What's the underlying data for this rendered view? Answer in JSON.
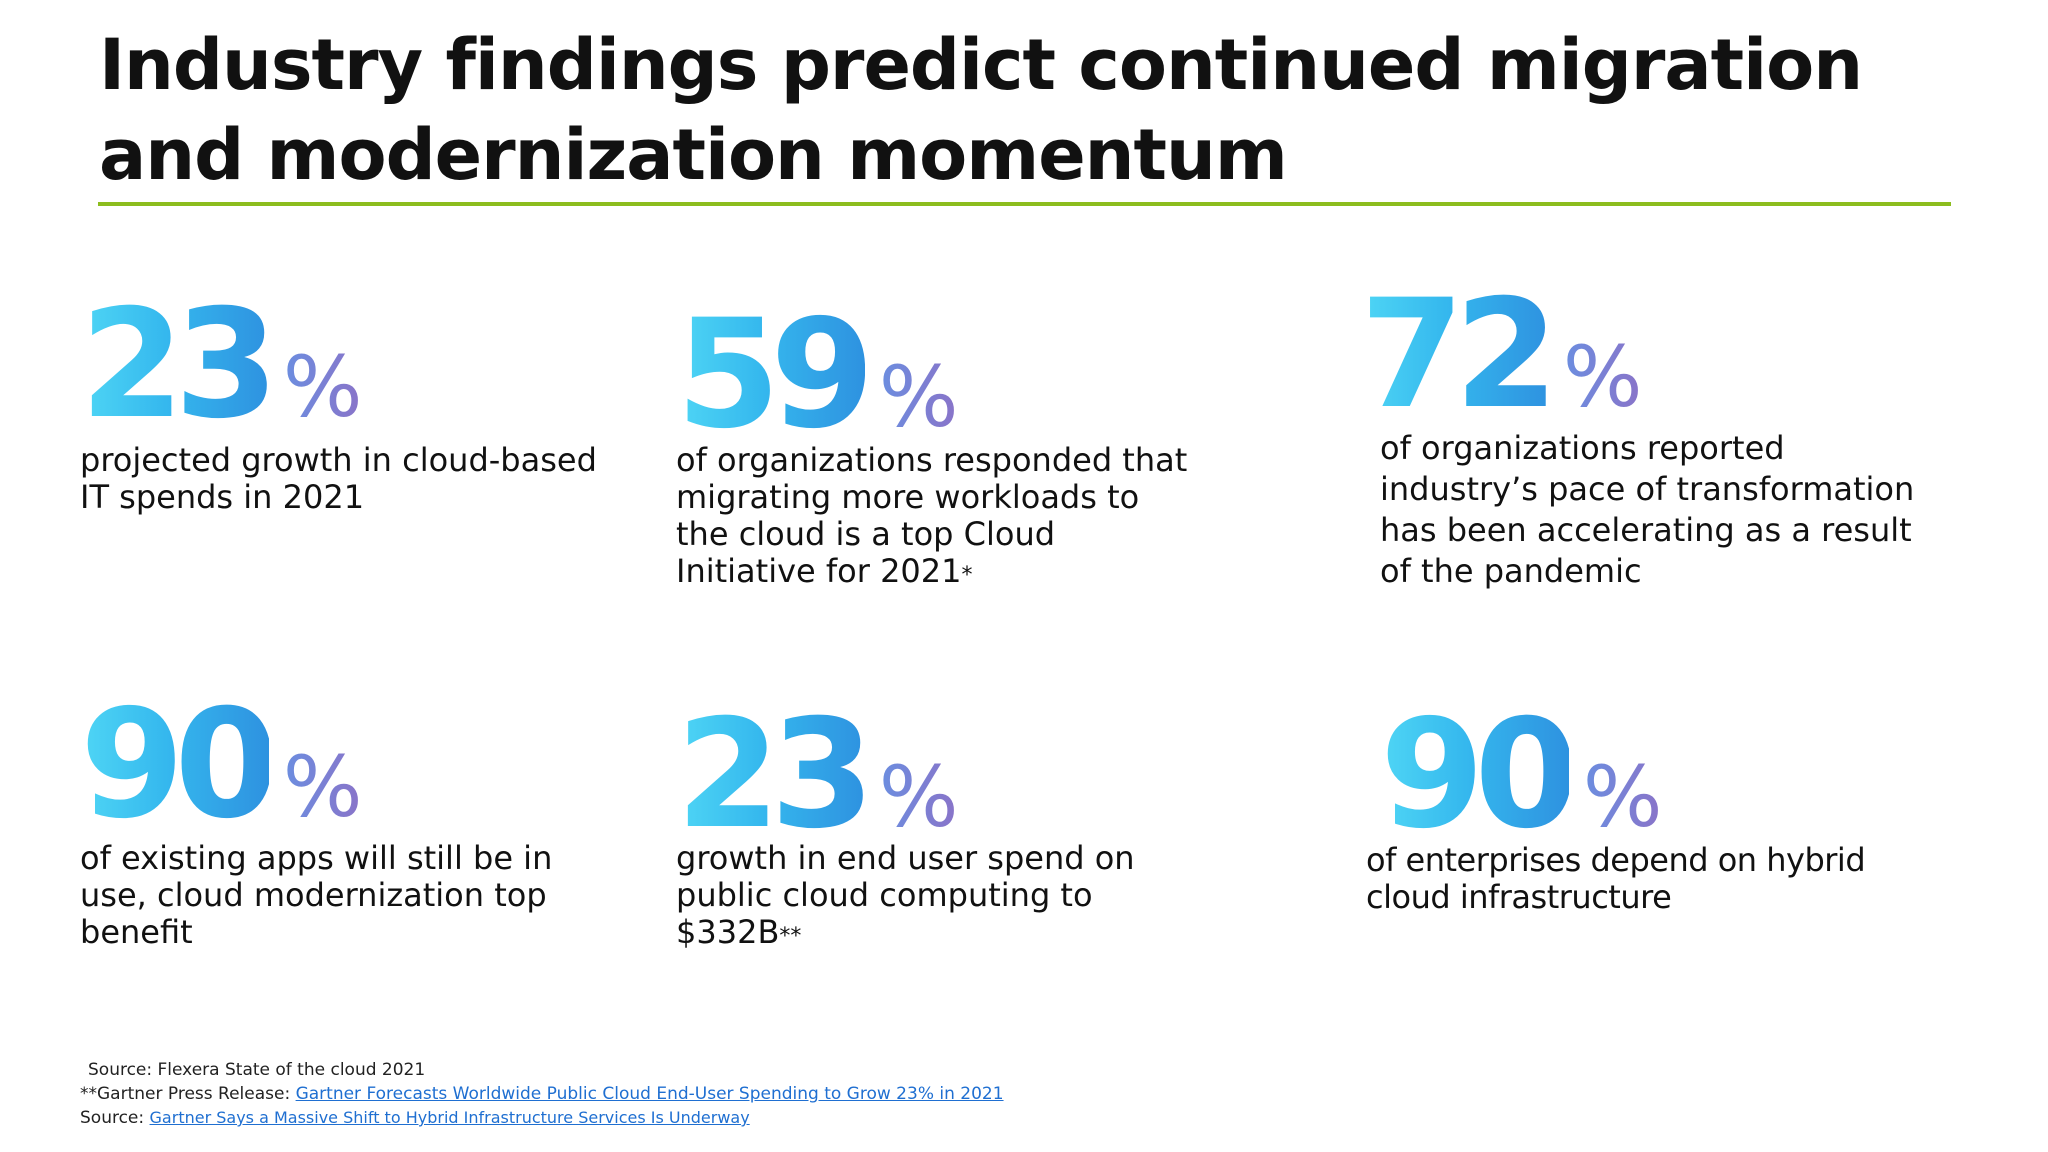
{
  "title": "Industry findings predict continued migration and modernization momentum",
  "colors": {
    "accent_rule": "#8cbd1e",
    "number_gradient": [
      "#4fd6f5",
      "#2e92e0"
    ],
    "percent_gradient": [
      "#6b8ee0",
      "#8a73c8"
    ],
    "link": "#1f6fd1"
  },
  "stats": [
    {
      "value": "23",
      "unit": "%",
      "description": "projected growth in cloud-based IT spends in 2021",
      "marker": ""
    },
    {
      "value": "59",
      "unit": "%",
      "description": "of organizations responded that migrating more workloads to the cloud is a top Cloud Initiative for 2021",
      "marker": "*"
    },
    {
      "value": "72",
      "unit": "%",
      "description": "of organizations reported industry’s pace of transformation has been accelerating as a result of the pandemic",
      "marker": ""
    },
    {
      "value": "90",
      "unit": "%",
      "description": "of existing apps will still be in use, cloud modernization top benefit",
      "marker": ""
    },
    {
      "value": "23",
      "unit": "%",
      "description": "growth in end user spend on public cloud computing to $332B",
      "marker": "**"
    },
    {
      "value": "90",
      "unit": "%",
      "description": "of enterprises depend on hybrid cloud infrastructure",
      "marker": ""
    }
  ],
  "sources": {
    "line1": "Source: Flexera State of the cloud 2021",
    "line2_prefix": "**Gartner Press Release: ",
    "line2_link": "Gartner Forecasts Worldwide Public Cloud End-User Spending to Grow 23% in 2021",
    "line3_prefix": "Source: ",
    "line3_link": "Gartner Says a Massive Shift to Hybrid Infrastructure Services Is Underway"
  }
}
